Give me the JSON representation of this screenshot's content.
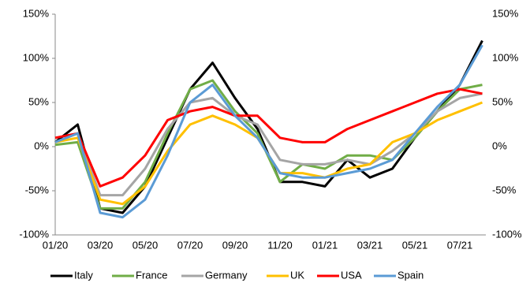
{
  "chart_data": {
    "type": "line",
    "categories": [
      "01/20",
      null,
      "03/20",
      null,
      "05/20",
      null,
      "07/20",
      null,
      "09/20",
      null,
      "11/20",
      null,
      "01/21",
      null,
      "03/21",
      null,
      "05/21",
      null,
      "07/21",
      null
    ],
    "series": [
      {
        "name": "Italy",
        "color": "#000000",
        "values": [
          5,
          25,
          -70,
          -75,
          -45,
          10,
          65,
          95,
          55,
          20,
          -40,
          -40,
          -45,
          -15,
          -35,
          -25,
          10,
          40,
          70,
          120
        ]
      },
      {
        "name": "France",
        "color": "#70ad47",
        "values": [
          2,
          5,
          -70,
          -70,
          -40,
          15,
          65,
          75,
          40,
          15,
          -40,
          -20,
          -25,
          -10,
          -10,
          -15,
          10,
          40,
          65,
          70
        ]
      },
      {
        "name": "Germany",
        "color": "#a5a5a5",
        "values": [
          5,
          15,
          -55,
          -55,
          -25,
          20,
          50,
          55,
          35,
          25,
          -15,
          -20,
          -20,
          -15,
          -20,
          -5,
          15,
          40,
          55,
          60
        ]
      },
      {
        "name": "UK",
        "color": "#ffc000",
        "values": [
          5,
          10,
          -60,
          -65,
          -45,
          -5,
          25,
          35,
          25,
          10,
          -30,
          -30,
          -35,
          -25,
          -20,
          5,
          15,
          30,
          40,
          50
        ]
      },
      {
        "name": "USA",
        "color": "#ff0000",
        "values": [
          10,
          15,
          -45,
          -35,
          -10,
          30,
          40,
          45,
          35,
          35,
          10,
          5,
          5,
          20,
          30,
          40,
          50,
          60,
          65,
          60
        ]
      },
      {
        "name": "Spain",
        "color": "#5b9bd5",
        "values": [
          5,
          15,
          -75,
          -80,
          -60,
          -10,
          50,
          70,
          35,
          10,
          -30,
          -35,
          -35,
          -30,
          -25,
          -15,
          15,
          45,
          70,
          115
        ]
      }
    ],
    "ylim": [
      -100,
      150
    ],
    "yticks": [
      {
        "value": -100,
        "label": "-100%"
      },
      {
        "value": -50,
        "label": "-50%"
      },
      {
        "value": 0,
        "label": "0%"
      },
      {
        "value": 50,
        "label": "50%"
      },
      {
        "value": 100,
        "label": "100%"
      },
      {
        "value": 150,
        "label": "150%"
      }
    ],
    "y2lim": [
      -100,
      150
    ],
    "y2ticks": [
      {
        "value": -100,
        "label": "-100%"
      },
      {
        "value": -50,
        "label": "-50%"
      },
      {
        "value": 0,
        "label": "0%"
      },
      {
        "value": 50,
        "label": "50%"
      },
      {
        "value": 100,
        "label": "100%"
      },
      {
        "value": 150,
        "label": "150%"
      }
    ]
  }
}
